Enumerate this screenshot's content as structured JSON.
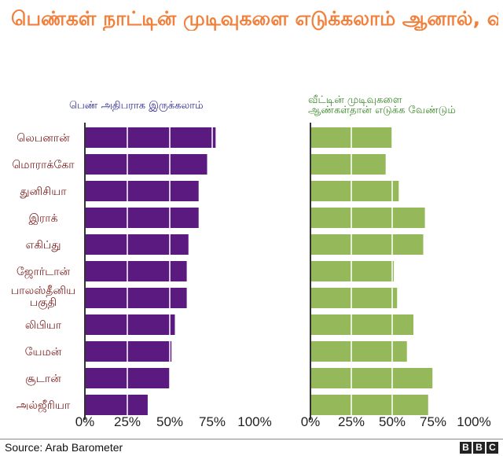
{
  "title": "பெண்கள் நாட்டின் முடிவுகளை எடுக்கலாம் ஆனால், வீட்டு முடிவுகள் ஆண்களுடையதுதான்",
  "source": "Source: Arab Barometer",
  "logo": [
    "B",
    "B",
    "C"
  ],
  "colors": {
    "left": "#5a1a80",
    "right": "#94b85a",
    "title": "#f0803c",
    "left_title": "#2d2a8c",
    "right_title": "#3f8a2e",
    "country": "#7a1a1a"
  },
  "chart_data": [
    {
      "type": "bar",
      "orientation": "horizontal",
      "title": "பெண் அதிபராக இருக்கலாம்",
      "categories": [
        "லெபனான்",
        "மொராக்கோ",
        "துனிசியா",
        "இராக்",
        "எகிப்து",
        "ஜோர்டான்",
        "பாலஸ்தீனிய பகுதி",
        "லிபியா",
        "யேமன்",
        "சூடான்",
        "அல்ஜீரியா"
      ],
      "values": [
        77,
        72,
        67,
        67,
        61,
        60,
        60,
        53,
        51,
        50,
        37
      ],
      "xlim": [
        0,
        100
      ],
      "xticks": [
        "0%",
        "25%",
        "50%",
        "75%",
        "100%"
      ],
      "grid": true
    },
    {
      "type": "bar",
      "orientation": "horizontal",
      "title": "வீட்டின் முடிவுகளை ஆண்கள்தான் எடுக்க வேண்டும்",
      "categories": [
        "லெபனான்",
        "மொராக்கோ",
        "துனிசியா",
        "இராக்",
        "எகிப்து",
        "ஜோர்டான்",
        "பாலஸ்தீனிய பகுதி",
        "லிபியா",
        "யேமன்",
        "சூடான்",
        "அல்ஜீரியா"
      ],
      "values": [
        50,
        46,
        54,
        70,
        69,
        51,
        53,
        63,
        59,
        75,
        72
      ],
      "xlim": [
        0,
        100
      ],
      "xticks": [
        "0%",
        "25%",
        "50%",
        "75%",
        "100%"
      ],
      "grid": true
    }
  ]
}
